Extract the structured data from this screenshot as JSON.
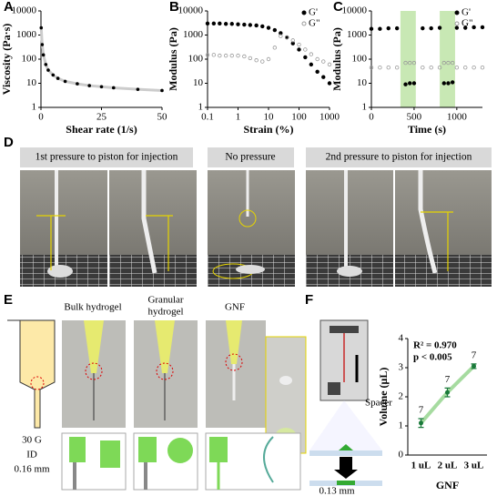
{
  "chart_data": [
    {
      "type": "line",
      "panel": "A",
      "xlabel": "Shear rate (1/s)",
      "ylabel": "Viscosity (Pa·s)",
      "x": [
        0.1,
        0.5,
        1,
        2,
        3,
        5,
        7,
        10,
        15,
        20,
        25,
        30,
        40,
        50
      ],
      "values": [
        2000,
        400,
        150,
        60,
        35,
        22,
        16,
        12,
        9.5,
        8,
        7.2,
        6.5,
        5.6,
        5
      ],
      "color": "#000000",
      "line_color": "#cccccc",
      "xlim": [
        0,
        50
      ],
      "xticks": [
        0,
        25,
        50
      ],
      "ylim": [
        1,
        10000
      ],
      "yticks": [
        1,
        10,
        100,
        1000,
        10000
      ],
      "y_log": true
    },
    {
      "type": "scatter",
      "panel": "B",
      "xlabel": "Strain (%)",
      "ylabel": "Modulus (Pa)",
      "x": [
        0.1,
        0.16,
        0.25,
        0.4,
        0.63,
        1,
        1.6,
        2.5,
        4,
        6.3,
        10,
        16,
        25,
        40,
        63,
        100,
        160,
        250,
        400,
        630,
        1000
      ],
      "series": [
        {
          "name": "G'",
          "color": "#000000",
          "marker": "filled",
          "values": [
            3000,
            3000,
            3000,
            2900,
            2900,
            2800,
            2700,
            2600,
            2500,
            2300,
            2000,
            1600,
            1200,
            800,
            450,
            250,
            120,
            60,
            30,
            18,
            10
          ]
        },
        {
          "name": "G\"",
          "color": "#9a9a9a",
          "marker": "open",
          "values": [
            150,
            150,
            140,
            140,
            140,
            140,
            130,
            110,
            90,
            80,
            100,
            300,
            900,
            800,
            600,
            400,
            250,
            160,
            100,
            80,
            60
          ]
        }
      ],
      "xlim": [
        0.1,
        1000
      ],
      "xticks": [
        0.1,
        1,
        10,
        100,
        1000
      ],
      "x_log": true,
      "ylim": [
        1,
        10000
      ],
      "yticks": [
        1,
        10,
        100,
        1000,
        10000
      ],
      "y_log": true,
      "legend": "upper right"
    },
    {
      "type": "scatter",
      "panel": "C",
      "xlabel": "Time (s)",
      "ylabel": "Modulus (Pa)",
      "x": [
        0,
        100,
        200,
        300,
        400,
        450,
        500,
        600,
        700,
        800,
        850,
        900,
        950,
        1000,
        1100,
        1200,
        1300
      ],
      "series": [
        {
          "name": "G'",
          "color": "#000000",
          "marker": "filled",
          "values": [
            1800,
            1800,
            1900,
            1900,
            9,
            10,
            10,
            1900,
            1900,
            2000,
            10,
            10,
            11,
            2000,
            2000,
            2100,
            2100
          ]
        },
        {
          "name": "G\"",
          "color": "#9a9a9a",
          "marker": "open",
          "values": [
            45,
            45,
            45,
            45,
            70,
            70,
            70,
            45,
            45,
            45,
            70,
            70,
            70,
            45,
            45,
            45,
            45
          ]
        }
      ],
      "bands": [
        [
          340,
          520
        ],
        [
          800,
          980
        ]
      ],
      "band_color": "#c8e8b4",
      "xlim": [
        0,
        1300
      ],
      "xticks": [
        0,
        500,
        1000
      ],
      "ylim": [
        1,
        10000
      ],
      "yticks": [
        1,
        10,
        100,
        1000,
        10000
      ],
      "y_log": true,
      "legend": "upper right"
    },
    {
      "type": "errorbar",
      "panel": "F",
      "xlabel": "GNF",
      "ylabel": "Volume (μL)",
      "categories": [
        "1 uL",
        "2 uL",
        "3 uL"
      ],
      "values": [
        1.1,
        2.15,
        3.05
      ],
      "errors": [
        0.15,
        0.15,
        0.08
      ],
      "n_labels": [
        "7",
        "7",
        "7"
      ],
      "annotations": [
        "R² = 0.970",
        "p < 0.005"
      ],
      "color": "#1a7a3a",
      "line_color": "#a6dba0",
      "ylim": [
        0,
        4
      ],
      "yticks": [
        0,
        1,
        2,
        3,
        4
      ]
    }
  ],
  "panel_d": {
    "label": "D",
    "captions": [
      "1st pressure to piston for injection",
      "No pressure",
      "2nd pressure to piston for injection"
    ]
  },
  "panel_e": {
    "label": "E",
    "bulk": "Bulk hydrogel",
    "granular": [
      "Granular",
      "hydrogel"
    ],
    "gnf": "GNF",
    "needle": [
      "30 G",
      "ID",
      "0.16 mm"
    ]
  },
  "panel_f": {
    "spacer": "Spacer",
    "gap": "0.13 mm"
  }
}
